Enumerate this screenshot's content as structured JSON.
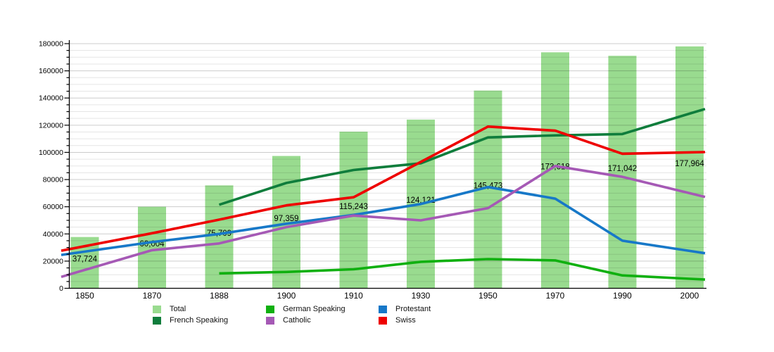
{
  "chart_data": {
    "type": "bar+line combo",
    "title": "",
    "categories": [
      "1850",
      "1870",
      "1888",
      "1900",
      "1910",
      "1930",
      "1950",
      "1970",
      "1990",
      "2000"
    ],
    "bar_series": {
      "name": "Total",
      "color": "#99db8f",
      "values": [
        37724,
        60004,
        75709,
        97359,
        115243,
        124121,
        145473,
        173618,
        171042,
        177964
      ],
      "labels": [
        "37,724",
        "60,004",
        "75,709",
        "97,359",
        "115,243",
        "124,121",
        "145,473",
        "173,618",
        "171,042",
        "177,964"
      ]
    },
    "line_series": [
      {
        "name": "French Speaking",
        "color": "#0f7d3c",
        "values": [
          null,
          null,
          61500,
          77500,
          87000,
          92000,
          111000,
          112500,
          113500,
          128500
        ]
      },
      {
        "name": "German Speaking",
        "color": "#10b010",
        "values": [
          null,
          null,
          11000,
          12000,
          14000,
          19500,
          21500,
          20500,
          9500,
          7000
        ]
      },
      {
        "name": "Protestant",
        "color": "#1778c8",
        "values": [
          27000,
          34000,
          40000,
          47500,
          54000,
          62000,
          74500,
          66000,
          35000,
          27500
        ]
      },
      {
        "name": "Catholic",
        "color": "#a559b5",
        "values": [
          13500,
          28000,
          33000,
          45000,
          53500,
          50000,
          59000,
          90000,
          82000,
          70000
        ]
      },
      {
        "name": "Swiss",
        "color": "#ee0000",
        "values": [
          31000,
          40500,
          50500,
          61000,
          67000,
          93000,
          119000,
          116000,
          99000,
          100000
        ]
      }
    ],
    "y_axis": {
      "min": 0,
      "max": 180000,
      "major_step": 20000,
      "minor_step": 5000,
      "tick_labels": [
        "0",
        "20000",
        "40000",
        "60000",
        "80000",
        "100000",
        "120000",
        "140000",
        "160000",
        "180000"
      ]
    },
    "x_axis": {
      "tick_labels": [
        "1850",
        "1870",
        "1888",
        "1900",
        "1910",
        "1930",
        "1950",
        "1970",
        "1990",
        "2000"
      ]
    },
    "grid": "on",
    "legend_position": "bottom",
    "legend_columns": [
      {
        "items": [
          {
            "label": "Total",
            "color": "#99db8f"
          },
          {
            "label": "French Speaking",
            "color": "#0f7d3c"
          }
        ]
      },
      {
        "items": [
          {
            "label": "German Speaking",
            "color": "#10b010"
          },
          {
            "label": "Catholic",
            "color": "#a559b5"
          }
        ]
      },
      {
        "items": [
          {
            "label": "Protestant",
            "color": "#1778c8"
          },
          {
            "label": "Swiss",
            "color": "#ee0000"
          }
        ]
      }
    ]
  }
}
